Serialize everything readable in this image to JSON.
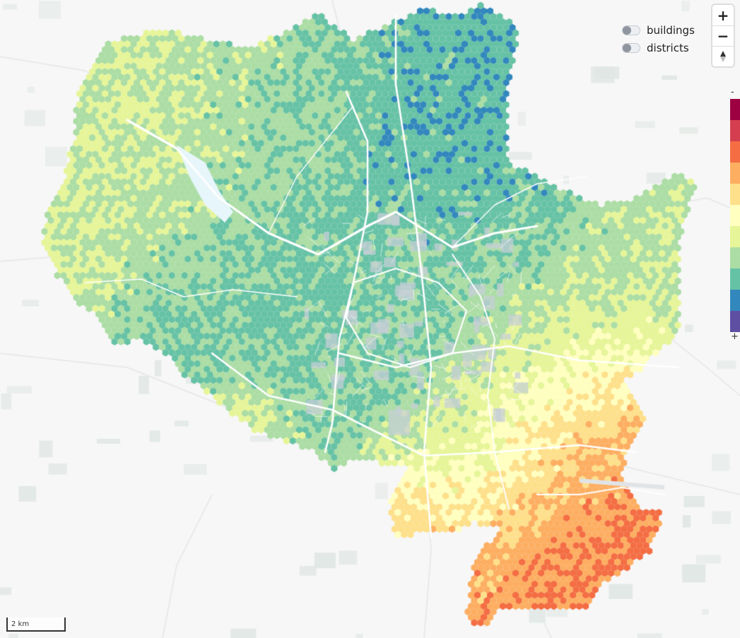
{
  "toggles": [
    {
      "label": "buildings",
      "on": false
    },
    {
      "label": "districts",
      "on": false
    }
  ],
  "zoom": {
    "in_label": "+",
    "out_label": "−"
  },
  "legend": {
    "min_label": "-",
    "max_label": "+",
    "colors": [
      "#9e0142",
      "#d53e4f",
      "#f46d43",
      "#fdae61",
      "#fee08b",
      "#ffffbf",
      "#e6f598",
      "#abdda4",
      "#66c2a5",
      "#3288bd",
      "#5e4fa2"
    ]
  },
  "scale": {
    "label": "2 km"
  },
  "map_colors": {
    "background": "#f7f7f7",
    "road": "#ffffff",
    "water": "#e6f6fa",
    "urban": "#c5cfd6",
    "forest": "#dfe6e3"
  }
}
